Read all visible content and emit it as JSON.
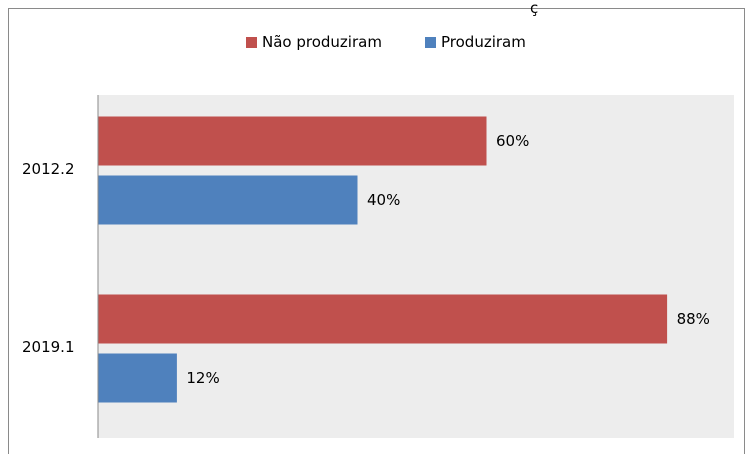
{
  "clipped_title_char": "ç",
  "chart_data": {
    "type": "bar",
    "orientation": "horizontal",
    "categories": [
      "2012.2",
      "2019.1"
    ],
    "series": [
      {
        "name": "Não produziram",
        "color": "#c0504d",
        "values": [
          60,
          88
        ],
        "labels": [
          "60%",
          "88%"
        ]
      },
      {
        "name": "Produziram",
        "color": "#4f81bd",
        "values": [
          40,
          12
        ],
        "labels": [
          "40%",
          "12%"
        ]
      }
    ],
    "xlim": [
      0,
      100
    ],
    "unit": "%",
    "legend_position": "top",
    "plot_background": "#ededed",
    "grid": false
  }
}
